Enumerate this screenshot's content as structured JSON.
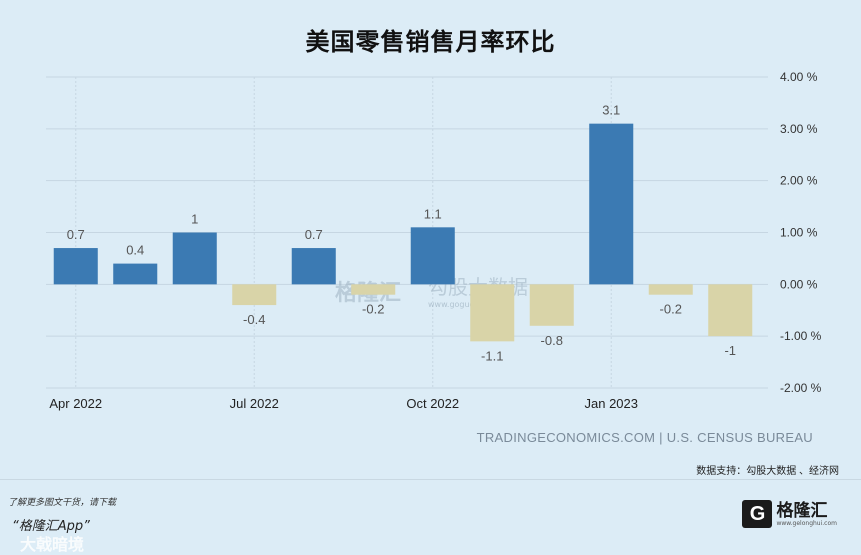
{
  "title": "美国零售销售月率环比",
  "chart_data": {
    "type": "bar",
    "x": [
      "2022-04",
      "2022-05",
      "2022-06",
      "2022-07",
      "2022-08",
      "2022-09",
      "2022-10",
      "2022-11",
      "2022-12",
      "2023-01",
      "2023-02",
      "2023-03"
    ],
    "values": [
      0.7,
      0.4,
      1.0,
      -0.4,
      0.7,
      -0.2,
      1.1,
      -1.1,
      -0.8,
      3.1,
      -0.2,
      -1.0
    ],
    "value_labels": [
      "0.7",
      "0.4",
      "1",
      "-0.4",
      "0.7",
      "-0.2",
      "1.1",
      "-1.1",
      "-0.8",
      "3.1",
      "-0.2",
      "-1"
    ],
    "x_ticks": [
      {
        "index": 0,
        "label": "Apr 2022"
      },
      {
        "index": 3,
        "label": "Jul 2022"
      },
      {
        "index": 6,
        "label": "Oct 2022"
      },
      {
        "index": 9,
        "label": "Jan 2023"
      }
    ],
    "y_ticks": [
      4,
      3,
      2,
      1,
      0,
      -1,
      -2
    ],
    "y_tick_labels": [
      "4.00 %",
      "3.00 %",
      "2.00 %",
      "1.00 %",
      "0.00 %",
      "-1.00 %",
      "-2.00 %"
    ],
    "ylim": [
      -2,
      4
    ],
    "y_axis_position": "right",
    "grid": true,
    "colors": {
      "positive": "#3b7ab3",
      "negative": "#d9d4a8"
    }
  },
  "source": "TRADINGECONOMICS.COM | U.S. CENSUS BUREAU",
  "data_support": "数据支持：勾股大数据 、经济网",
  "watermarks": [
    "格隆汇",
    "勾股大数据",
    "www.gogudata.com"
  ],
  "footer": {
    "line1": "了解更多图文干货，请下载",
    "line2": "“格隆汇App”",
    "overlay": "大戟暗境"
  },
  "logo": {
    "name": "格隆汇",
    "url": "www.gelonghui.com"
  }
}
